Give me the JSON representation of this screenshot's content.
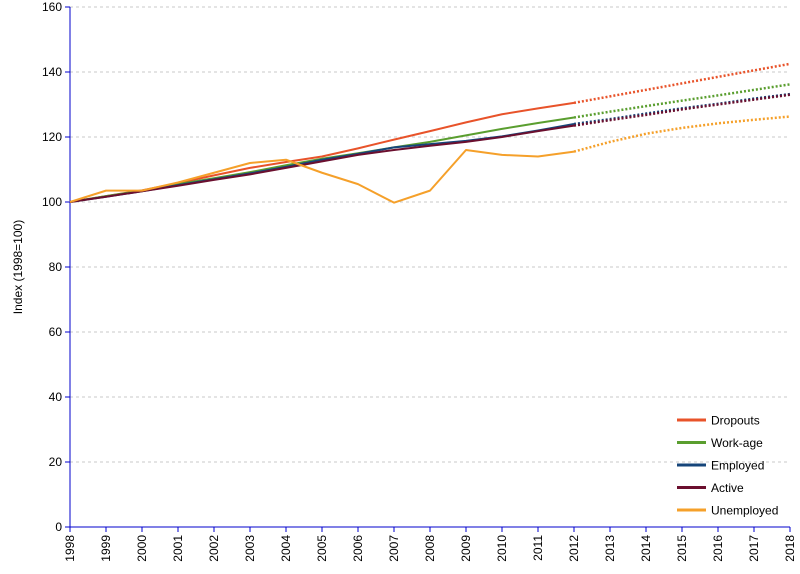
{
  "chart_data": {
    "type": "line",
    "title": "",
    "xlabel": "",
    "ylabel": "Index (1998=100)",
    "x": [
      "1998",
      "1999",
      "2000",
      "2001",
      "2002",
      "2003",
      "2004",
      "2005",
      "2006",
      "2007",
      "2008",
      "2009",
      "2010",
      "2011",
      "2012",
      "2013",
      "2014",
      "2015",
      "2016",
      "2017",
      "2018"
    ],
    "ylim": [
      0,
      160
    ],
    "yticks": [
      0,
      20,
      40,
      60,
      80,
      100,
      120,
      140,
      160
    ],
    "grid": "horizontal dashed",
    "legend_position": "bottom-right",
    "projection_style": "dotted from 2012",
    "projection_start": "2012",
    "series": [
      {
        "name": "Dropouts",
        "color": "#e8532a",
        "values": [
          100,
          101.8,
          103.6,
          105.8,
          108.2,
          110.5,
          112.3,
          114.0,
          116.5,
          119.2,
          121.8,
          124.5,
          127.0,
          128.8,
          130.5,
          132.5,
          134.5,
          136.5,
          138.5,
          140.5,
          142.5
        ]
      },
      {
        "name": "Work-age",
        "color": "#5a9e2f",
        "values": [
          100,
          101.8,
          103.5,
          105.5,
          107.3,
          109.2,
          111.3,
          113.3,
          115.0,
          116.8,
          118.5,
          120.5,
          122.5,
          124.3,
          126.0,
          127.8,
          129.5,
          131.2,
          132.8,
          134.5,
          136.2
        ]
      },
      {
        "name": "Employed",
        "color": "#16457a",
        "values": [
          100,
          101.6,
          103.3,
          105.2,
          107.0,
          108.8,
          110.8,
          113.0,
          114.8,
          116.8,
          117.8,
          118.8,
          120.2,
          122.0,
          124.0,
          125.5,
          127.2,
          128.8,
          130.2,
          131.8,
          133.2
        ]
      },
      {
        "name": "Active",
        "color": "#6b0f2e",
        "values": [
          100,
          101.6,
          103.3,
          105.0,
          106.8,
          108.5,
          110.5,
          112.5,
          114.5,
          116.0,
          117.3,
          118.5,
          120.0,
          121.8,
          123.5,
          125.2,
          126.8,
          128.5,
          130.0,
          131.5,
          133.0
        ]
      },
      {
        "name": "Unemployed",
        "color": "#f5a02a",
        "values": [
          100,
          103.5,
          103.5,
          106.0,
          109.0,
          112.0,
          113.0,
          109.0,
          105.5,
          99.8,
          103.5,
          116.0,
          114.5,
          114.0,
          115.5,
          118.5,
          121.0,
          122.8,
          124.2,
          125.3,
          126.3
        ]
      }
    ]
  }
}
